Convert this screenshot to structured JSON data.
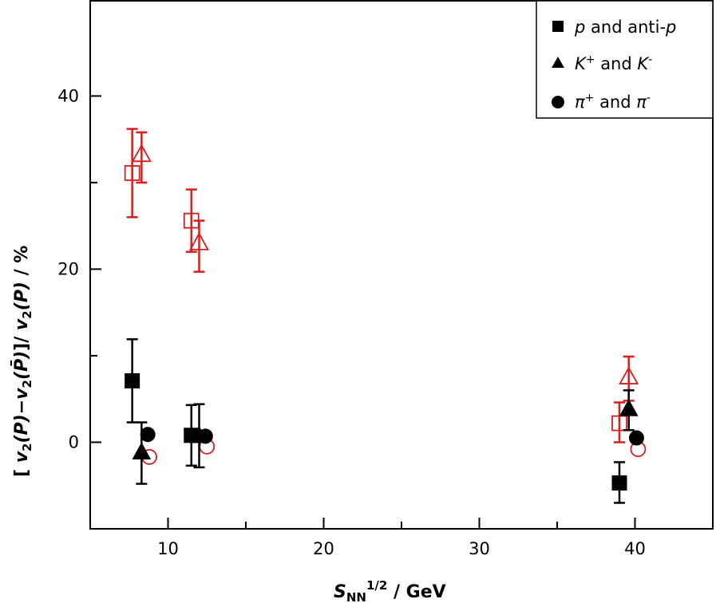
{
  "chart_data": {
    "type": "scatter",
    "title": "",
    "xlabel": "S_NN^1/2 / GeV",
    "xlabel_parts": {
      "main": "S",
      "sub": "NN",
      "sup": "1/2",
      "unit": " / GeV"
    },
    "ylabel": "[v2(P)−v2(P̄)]/v2(P) / %",
    "ylabel_parts": {
      "a": "[ ",
      "v": "v",
      "two": "2",
      "p1": "(P)",
      "minus": "−",
      "p2": "(P̄)",
      "close": "]/ ",
      "p3": "(P)",
      "unit": " / %"
    },
    "xlim": [
      5,
      45
    ],
    "ylim": [
      -10,
      51
    ],
    "xticks": [
      10,
      20,
      30,
      40
    ],
    "xtick_labels": [
      "10",
      "20",
      "30",
      "40"
    ],
    "yticks": [
      0,
      20,
      40
    ],
    "ytick_labels": [
      "0",
      "20",
      "40"
    ],
    "minor_xticks": [
      15,
      25,
      35
    ],
    "minor_yticks": [
      10,
      30
    ],
    "grid": false,
    "legend_position": "top-right",
    "legend": [
      {
        "marker": "square",
        "label_italic": "p",
        "label": " and anti-",
        "label_italic2": "p"
      },
      {
        "marker": "triangle",
        "label_italic": "K",
        "sup": "+",
        "label": " and ",
        "label_italic2": "K",
        "sup2": "-"
      },
      {
        "marker": "circle",
        "label_italic": "π",
        "sup": "+",
        "label": " and ",
        "label_italic2": "π",
        "sup2": "-"
      }
    ],
    "colors": {
      "filled": "#000000",
      "open": "#d81e1e"
    },
    "series": [
      {
        "name": "p and anti-p (filled)",
        "marker": "square",
        "fill": true,
        "color": "#000000",
        "points": [
          {
            "x": 7.7,
            "y": 7.1,
            "lo": 2.3,
            "hi": 11.9
          },
          {
            "x": 11.5,
            "y": 0.8,
            "lo": -2.7,
            "hi": 4.3
          },
          {
            "x": 39.0,
            "y": -4.7,
            "lo": -7.0,
            "hi": -2.3
          }
        ]
      },
      {
        "name": "K+ and K- (filled)",
        "marker": "triangle",
        "fill": true,
        "color": "#000000",
        "points": [
          {
            "x": 8.3,
            "y": -1.2,
            "lo": -4.8,
            "hi": 2.3
          },
          {
            "x": 12.0,
            "y": 0.7,
            "lo": -2.9,
            "hi": 4.4
          },
          {
            "x": 39.6,
            "y": 3.8,
            "lo": 1.4,
            "hi": 6.0
          }
        ]
      },
      {
        "name": "pi+ and pi- (filled)",
        "marker": "circle",
        "fill": true,
        "color": "#000000",
        "points": [
          {
            "x": 8.7,
            "y": 0.9
          },
          {
            "x": 12.4,
            "y": 0.7
          },
          {
            "x": 40.1,
            "y": 0.5
          }
        ]
      },
      {
        "name": "p and anti-p (open)",
        "marker": "square",
        "fill": false,
        "color": "#d81e1e",
        "points": [
          {
            "x": 7.7,
            "y": 31.1,
            "lo": 26.0,
            "hi": 36.2
          },
          {
            "x": 11.5,
            "y": 25.6,
            "lo": 22.0,
            "hi": 29.2
          },
          {
            "x": 39.0,
            "y": 2.2,
            "lo": 0.0,
            "hi": 4.6
          }
        ]
      },
      {
        "name": "K+ and K- (open)",
        "marker": "triangle",
        "fill": false,
        "color": "#d81e1e",
        "points": [
          {
            "x": 8.3,
            "y": 33.2,
            "lo": 30.0,
            "hi": 35.8
          },
          {
            "x": 12.0,
            "y": 23.0,
            "lo": 19.7,
            "hi": 25.6
          },
          {
            "x": 39.6,
            "y": 7.5,
            "lo": 4.8,
            "hi": 9.9
          }
        ]
      },
      {
        "name": "pi+ and pi- (open)",
        "marker": "circle",
        "fill": false,
        "color": "#d81e1e",
        "points": [
          {
            "x": 8.8,
            "y": -1.7
          },
          {
            "x": 12.5,
            "y": -0.5
          },
          {
            "x": 40.2,
            "y": -0.8
          }
        ]
      }
    ]
  }
}
